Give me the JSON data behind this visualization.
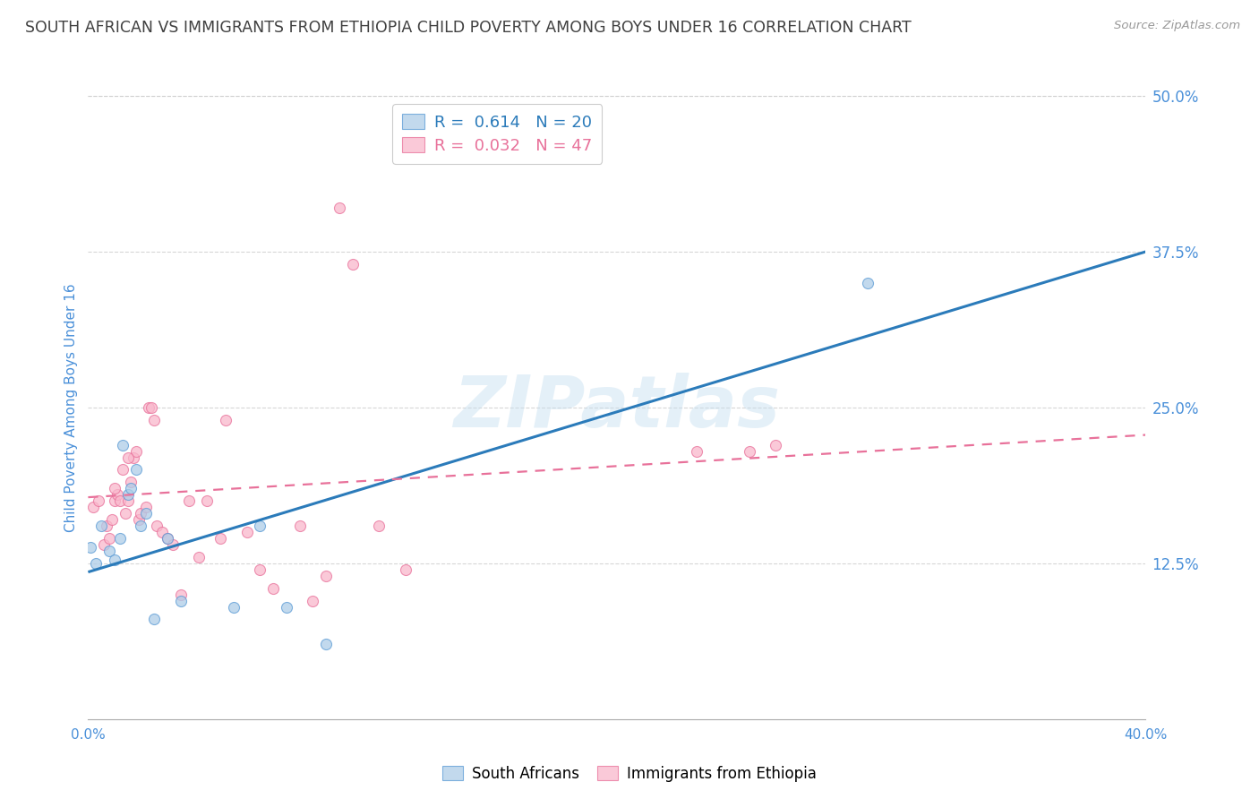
{
  "title": "SOUTH AFRICAN VS IMMIGRANTS FROM ETHIOPIA CHILD POVERTY AMONG BOYS UNDER 16 CORRELATION CHART",
  "source": "Source: ZipAtlas.com",
  "ylabel": "Child Poverty Among Boys Under 16",
  "xlim": [
    0.0,
    0.4
  ],
  "ylim": [
    0.0,
    0.5
  ],
  "xticks": [
    0.0,
    0.05,
    0.1,
    0.15,
    0.2,
    0.25,
    0.3,
    0.35,
    0.4
  ],
  "ytick_labels_right": [
    "50.0%",
    "37.5%",
    "25.0%",
    "12.5%"
  ],
  "ytick_values_right": [
    0.5,
    0.375,
    0.25,
    0.125
  ],
  "watermark": "ZIPatlas",
  "blue_R": "0.614",
  "blue_N": "20",
  "pink_R": "0.032",
  "pink_N": "47",
  "blue_scatter_x": [
    0.001,
    0.003,
    0.005,
    0.008,
    0.01,
    0.012,
    0.013,
    0.015,
    0.016,
    0.018,
    0.02,
    0.022,
    0.025,
    0.03,
    0.035,
    0.055,
    0.065,
    0.075,
    0.09,
    0.295
  ],
  "blue_scatter_y": [
    0.138,
    0.125,
    0.155,
    0.135,
    0.128,
    0.145,
    0.22,
    0.18,
    0.185,
    0.2,
    0.155,
    0.165,
    0.08,
    0.145,
    0.095,
    0.09,
    0.155,
    0.09,
    0.06,
    0.35
  ],
  "pink_scatter_x": [
    0.002,
    0.004,
    0.006,
    0.007,
    0.008,
    0.009,
    0.01,
    0.011,
    0.012,
    0.013,
    0.014,
    0.015,
    0.016,
    0.017,
    0.018,
    0.019,
    0.02,
    0.022,
    0.023,
    0.024,
    0.025,
    0.026,
    0.028,
    0.03,
    0.032,
    0.035,
    0.038,
    0.042,
    0.045,
    0.05,
    0.052,
    0.06,
    0.065,
    0.07,
    0.08,
    0.085,
    0.09,
    0.095,
    0.1,
    0.11,
    0.12,
    0.135,
    0.23,
    0.25,
    0.26,
    0.01,
    0.015
  ],
  "pink_scatter_y": [
    0.17,
    0.175,
    0.14,
    0.155,
    0.145,
    0.16,
    0.175,
    0.18,
    0.175,
    0.2,
    0.165,
    0.175,
    0.19,
    0.21,
    0.215,
    0.16,
    0.165,
    0.17,
    0.25,
    0.25,
    0.24,
    0.155,
    0.15,
    0.145,
    0.14,
    0.1,
    0.175,
    0.13,
    0.175,
    0.145,
    0.24,
    0.15,
    0.12,
    0.105,
    0.155,
    0.095,
    0.115,
    0.41,
    0.365,
    0.155,
    0.12,
    0.47,
    0.215,
    0.215,
    0.22,
    0.185,
    0.21
  ],
  "blue_line_x": [
    0.0,
    0.4
  ],
  "blue_line_y": [
    0.118,
    0.375
  ],
  "pink_line_x": [
    0.0,
    0.4
  ],
  "pink_line_y": [
    0.178,
    0.228
  ],
  "scatter_size": 75,
  "blue_fill_color": "#aecde8",
  "pink_fill_color": "#f9b8cc",
  "blue_edge_color": "#5b9bd5",
  "pink_edge_color": "#e8719a",
  "blue_line_color": "#2b7bba",
  "pink_line_color": "#e8719a",
  "grid_color": "#cccccc",
  "title_color": "#404040",
  "axis_label_color": "#4a90d9",
  "right_tick_color": "#4a90d9",
  "background_color": "#ffffff",
  "legend_label_blue": "R =  0.614   N = 20",
  "legend_label_pink": "R =  0.032   N = 47",
  "legend_text_color_blue": "#2b7bba",
  "legend_text_color_pink": "#e8719a",
  "bottom_legend_labels": [
    "South Africans",
    "Immigrants from Ethiopia"
  ],
  "bottom_legend_colors": [
    "#aecde8",
    "#f9b8cc"
  ],
  "bottom_legend_edge_colors": [
    "#5b9bd5",
    "#e8719a"
  ]
}
